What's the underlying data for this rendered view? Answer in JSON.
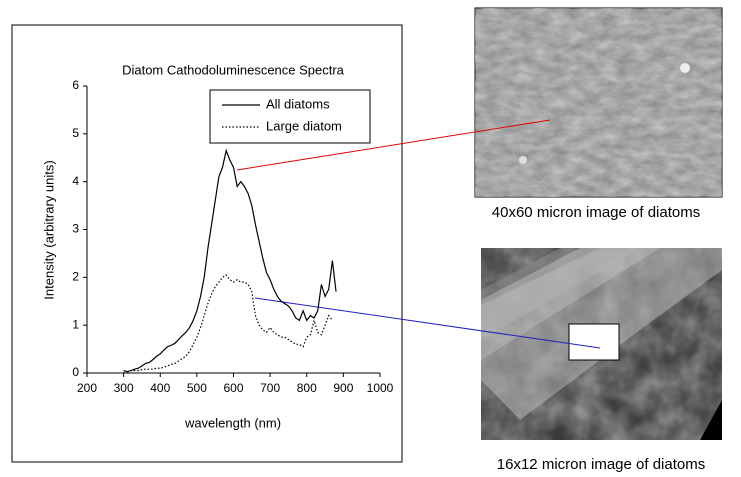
{
  "chart_data": {
    "type": "line",
    "title": "Diatom Cathodoluminescence Spectra",
    "x_label": "wavelength (nm)",
    "y_label": "Intensity (arbitrary units)",
    "x": [
      300,
      310,
      320,
      330,
      340,
      350,
      360,
      370,
      380,
      390,
      400,
      410,
      420,
      430,
      440,
      450,
      460,
      470,
      480,
      490,
      500,
      510,
      520,
      530,
      540,
      550,
      560,
      570,
      580,
      590,
      600,
      610,
      620,
      630,
      640,
      650,
      660,
      670,
      680,
      690,
      700,
      710,
      720,
      730,
      740,
      750,
      760,
      770,
      780,
      790,
      800,
      810,
      820,
      830,
      840,
      850,
      860,
      870,
      880
    ],
    "series": [
      {
        "name": "All diatoms",
        "color": "#000000",
        "dash": "solid",
        "values": [
          0.05,
          0.03,
          0.05,
          0.08,
          0.1,
          0.15,
          0.2,
          0.22,
          0.28,
          0.35,
          0.4,
          0.48,
          0.55,
          0.58,
          0.62,
          0.7,
          0.78,
          0.85,
          0.95,
          1.1,
          1.3,
          1.6,
          2.0,
          2.6,
          3.1,
          3.6,
          4.1,
          4.3,
          4.65,
          4.45,
          4.3,
          3.9,
          4.0,
          3.9,
          3.75,
          3.5,
          3.1,
          2.75,
          2.4,
          2.1,
          1.95,
          1.75,
          1.6,
          1.5,
          1.45,
          1.4,
          1.3,
          1.15,
          1.1,
          1.3,
          1.1,
          1.2,
          1.15,
          1.3,
          1.85,
          1.6,
          1.75,
          2.35,
          1.7
        ]
      },
      {
        "name": "Large diatom",
        "color": "#000000",
        "dash": "dotted",
        "values": [
          0.0,
          0.02,
          0.05,
          0.05,
          0.05,
          0.07,
          0.08,
          0.08,
          0.08,
          0.1,
          0.1,
          0.12,
          0.15,
          0.18,
          0.2,
          0.25,
          0.3,
          0.35,
          0.45,
          0.6,
          0.75,
          0.95,
          1.2,
          1.45,
          1.65,
          1.8,
          1.9,
          2.0,
          2.05,
          1.95,
          1.9,
          1.95,
          1.9,
          1.9,
          1.85,
          1.7,
          1.2,
          1.0,
          0.9,
          0.85,
          0.95,
          0.85,
          0.8,
          0.75,
          0.75,
          0.7,
          0.65,
          0.6,
          0.6,
          0.55,
          0.75,
          0.8,
          1.1,
          0.85,
          0.8,
          1.0,
          1.2,
          1.1,
          null
        ]
      }
    ],
    "xlim": [
      200,
      1000
    ],
    "xticks": [
      200,
      300,
      400,
      500,
      600,
      700,
      800,
      900,
      1000
    ],
    "ylim": [
      0,
      6
    ],
    "yticks": [
      0,
      1,
      2,
      3,
      4,
      5,
      6
    ],
    "grid": false,
    "legend": "top-right"
  },
  "captions": [
    "40x60 micron image of diatoms",
    "16x12 micron image of diatoms"
  ]
}
